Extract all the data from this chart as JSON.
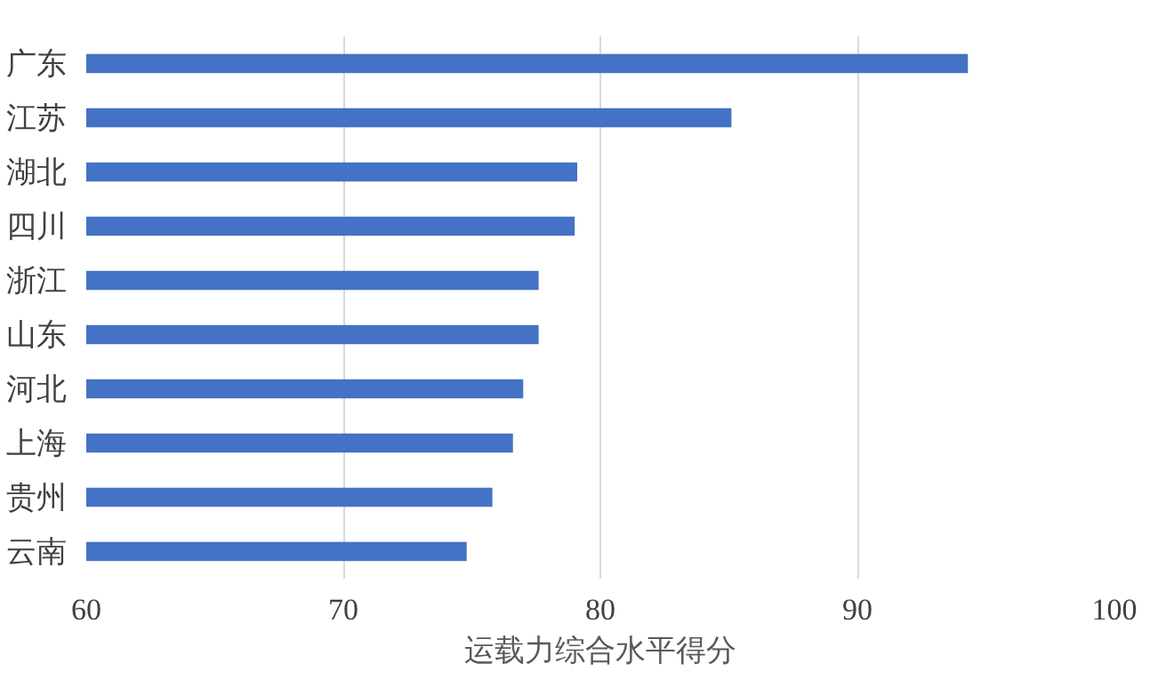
{
  "chart_data": {
    "type": "bar",
    "orientation": "horizontal",
    "xlabel": "运载力综合水平得分",
    "categories": [
      "广东",
      "江苏",
      "湖北",
      "四川",
      "浙江",
      "山东",
      "河北",
      "上海",
      "贵州",
      "云南"
    ],
    "values": [
      94.3,
      85.1,
      79.1,
      79.0,
      77.6,
      77.6,
      77.0,
      76.6,
      75.8,
      74.8
    ],
    "color": "#4472c4",
    "xlim": [
      60,
      100
    ],
    "xticks": [
      60,
      70,
      80,
      90,
      100
    ],
    "grid": "x"
  }
}
